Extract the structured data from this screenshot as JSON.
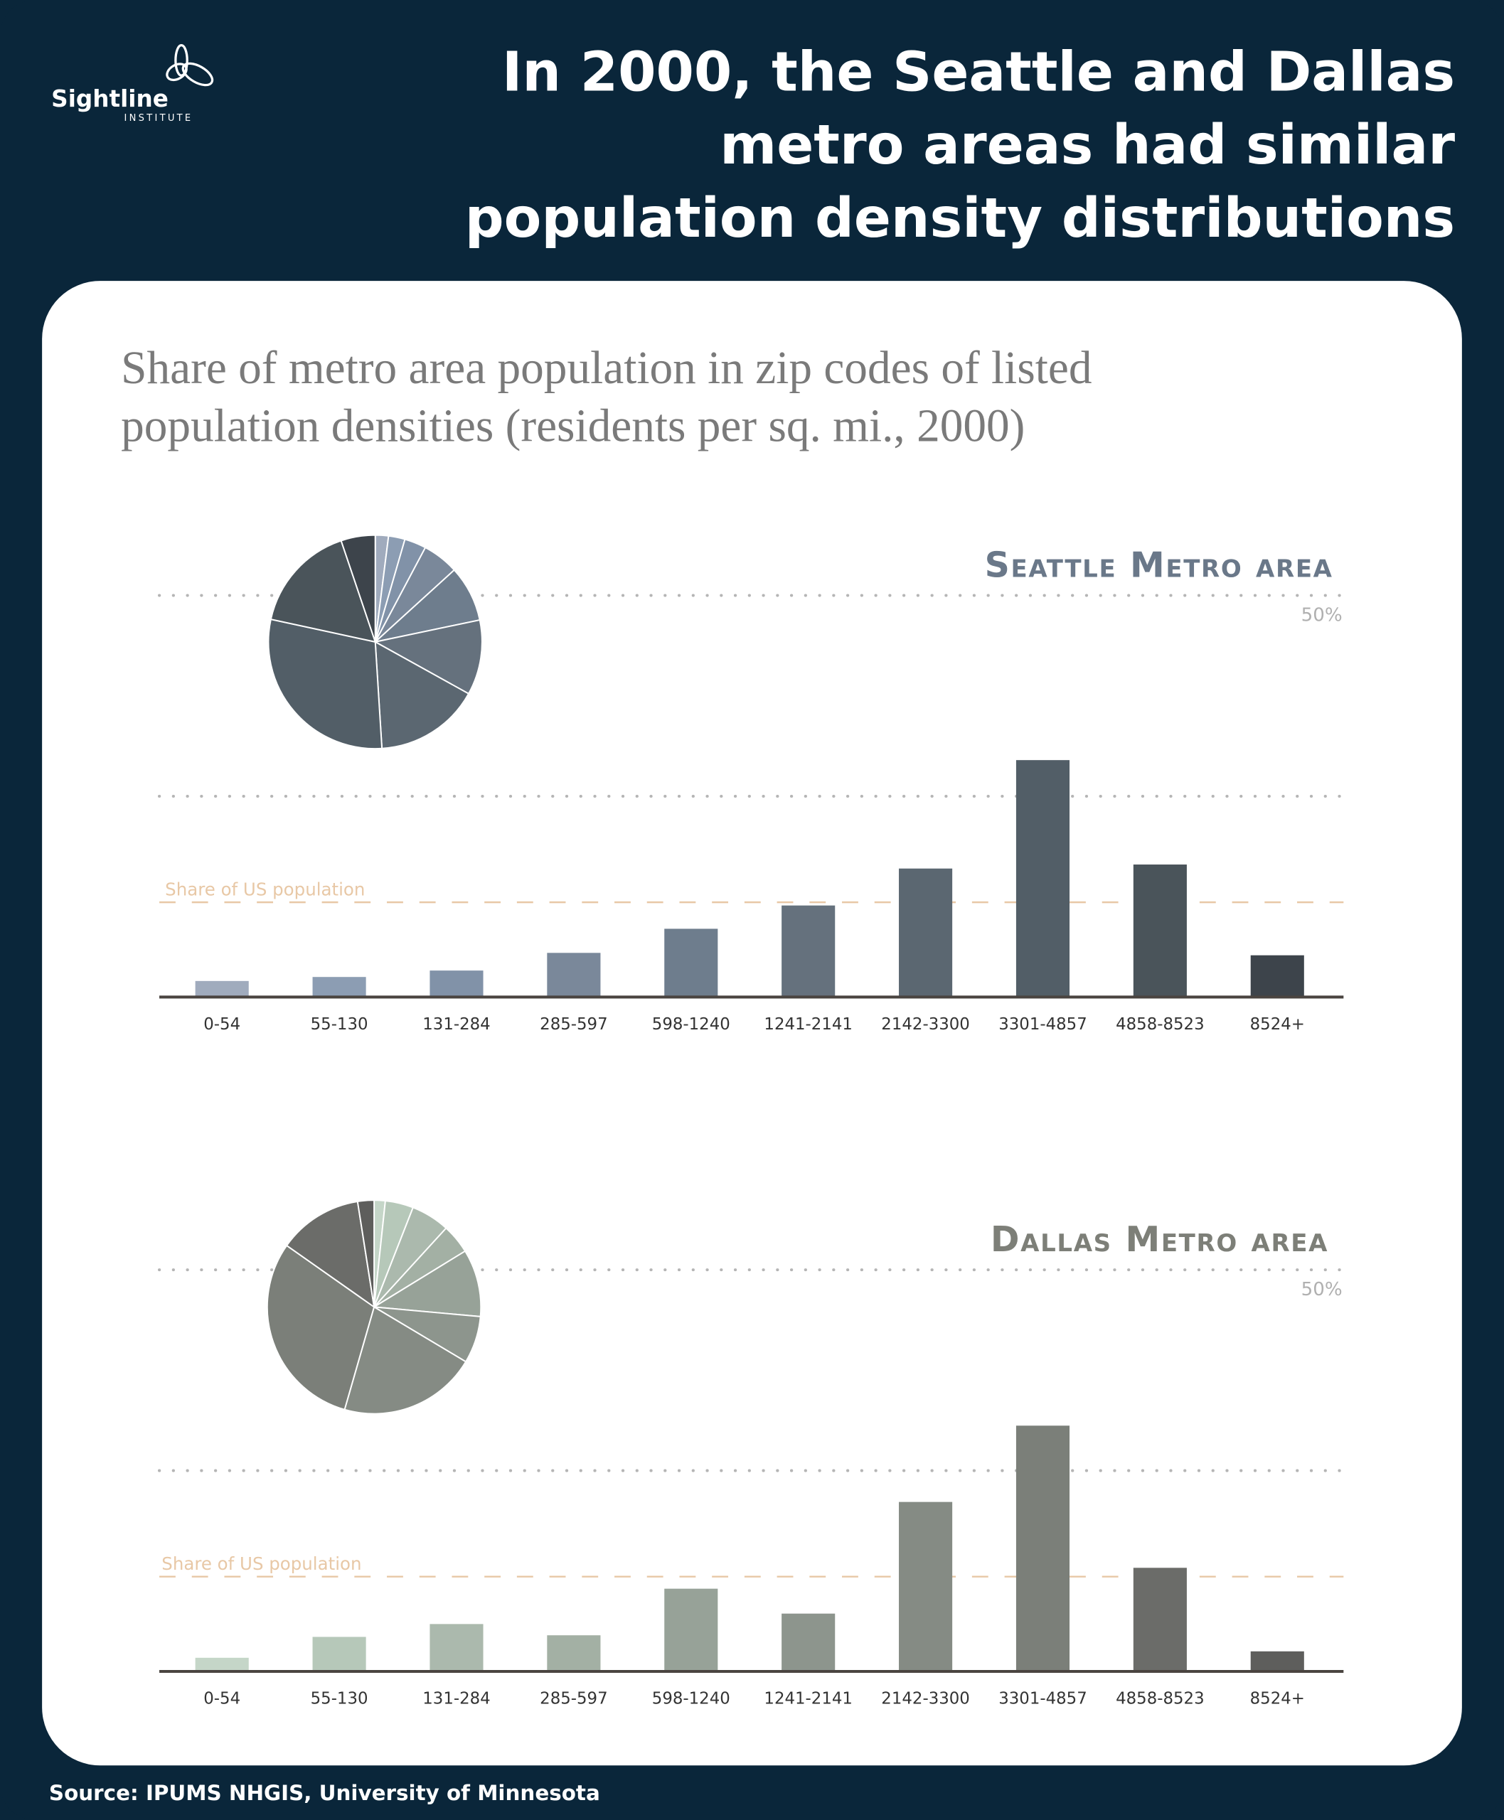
{
  "header": {
    "logo_text": "Sightline",
    "logo_subtext": "INSTITUTE",
    "title_lines": [
      "In 2000, the Seattle and Dallas",
      "metro areas had similar",
      "population density distributions"
    ]
  },
  "subtitle_lines": [
    "Share of metro area population in zip codes of listed",
    "population densities (residents per sq. mi., 2000)"
  ],
  "source": "Source: IPUMS NHGIS, University of Minnesota",
  "colors": {
    "background": "#0a263a",
    "card": "#ffffff",
    "reference_line": "#e8c8a6",
    "axis": "#4a4440"
  },
  "chart_data": [
    {
      "type": "bar",
      "title": "Seattle Metro area",
      "categories": [
        "0-54",
        "55-130",
        "131-284",
        "285-597",
        "598-1240",
        "1241-2141",
        "2142-3300",
        "3301-4857",
        "4858-8523",
        "8524+"
      ],
      "values": [
        2.0,
        2.5,
        3.3,
        5.5,
        8.5,
        11.4,
        16.0,
        29.5,
        16.5,
        5.2
      ],
      "unit": "%",
      "ylim": [
        0,
        50
      ],
      "gridlines": [
        25,
        50
      ],
      "tick_label": "50%",
      "reference_line": {
        "label": "Share of US population",
        "value": 11.8
      },
      "inset_pie": true,
      "title_color": "#6a7889",
      "bar_colors": [
        "#a0abbd",
        "#8c9db3",
        "#8192a8",
        "#7a889a",
        "#6e7d8d",
        "#65717d",
        "#5b6771",
        "#525e67",
        "#4a545a",
        "#3d444b"
      ]
    },
    {
      "type": "bar",
      "title": "Dallas Metro area",
      "categories": [
        "0-54",
        "55-130",
        "131-284",
        "285-597",
        "598-1240",
        "1241-2141",
        "2142-3300",
        "3301-4857",
        "4858-8523",
        "8524+"
      ],
      "values": [
        1.7,
        4.3,
        5.9,
        4.5,
        10.3,
        7.2,
        21.1,
        30.6,
        12.9,
        2.5
      ],
      "unit": "%",
      "ylim": [
        0,
        50
      ],
      "gridlines": [
        25,
        50
      ],
      "tick_label": "50%",
      "reference_line": {
        "label": "Share of US population",
        "value": 11.8
      },
      "inset_pie": true,
      "title_color": "#7d7f78",
      "bar_colors": [
        "#c5d6c8",
        "#b6c8b9",
        "#abb9ad",
        "#a3b0a4",
        "#97a298",
        "#8d958d",
        "#858b84",
        "#7b7f79",
        "#6b6c69",
        "#5e5e5c"
      ]
    }
  ]
}
